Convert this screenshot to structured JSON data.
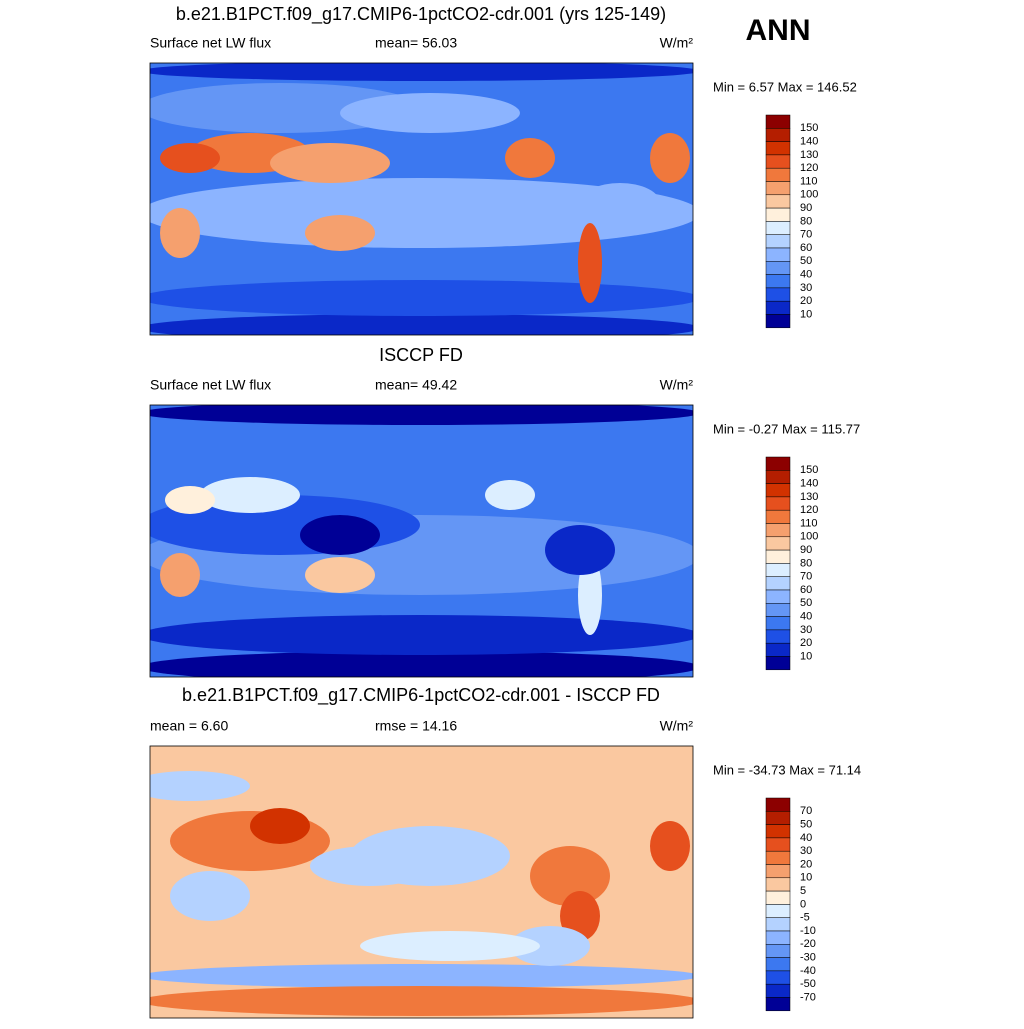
{
  "season": "ANN",
  "panels": [
    {
      "title": "b.e21.B1PCT.f09_g17.CMIP6-1pctCO2-cdr.001 (yrs 125-149)",
      "left": "Surface net LW flux",
      "center": "mean=  56.03",
      "units": "W/m²",
      "minmax": "Min =   6.57 Max = 146.52",
      "colorbar": [
        150,
        140,
        130,
        120,
        110,
        100,
        90,
        80,
        70,
        60,
        50,
        40,
        30,
        20,
        10
      ]
    },
    {
      "title": "ISCCP FD",
      "left": "Surface net LW flux",
      "center": "mean=  49.42",
      "units": "W/m²",
      "minmax": "Min =  -0.27 Max = 115.77",
      "colorbar": [
        150,
        140,
        130,
        120,
        110,
        100,
        90,
        80,
        70,
        60,
        50,
        40,
        30,
        20,
        10
      ]
    },
    {
      "title": "b.e21.B1PCT.f09_g17.CMIP6-1pctCO2-cdr.001 - ISCCP FD",
      "left": "mean =   6.60",
      "center": "rmse =  14.16",
      "units": "W/m²",
      "minmax": "Min = -34.73 Max =  71.14",
      "colorbar": [
        70,
        50,
        40,
        30,
        20,
        10,
        5,
        0,
        -5,
        -10,
        -20,
        -30,
        -40,
        -50,
        -70
      ]
    }
  ],
  "colors": [
    "#8c0000",
    "#b41e00",
    "#d23200",
    "#e6501e",
    "#f0783c",
    "#f5a06e",
    "#fac8a0",
    "#fff0dc",
    "#dceeff",
    "#b4d2ff",
    "#8cb4ff",
    "#6496f5",
    "#3c78f0",
    "#1e50e6",
    "#0a28c8",
    "#000096"
  ]
}
